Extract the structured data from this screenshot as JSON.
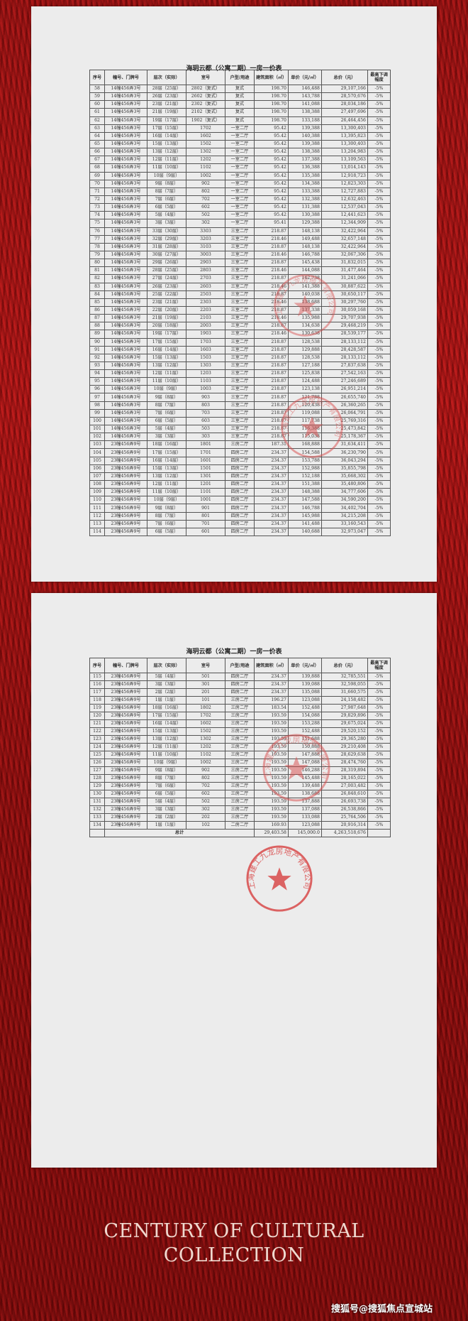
{
  "document_title": "海玥云都（公寓二期）一房一价表",
  "columns": [
    "序号",
    "幢号、门牌号",
    "层次（实际）",
    "室号",
    "户型/用途",
    "建筑面积（㎡）",
    "单价（元/㎡）",
    "总价（元）",
    "最高下调幅度"
  ],
  "page1_rows": [
    [
      "58",
      "14幢456弄3号",
      "28层（25层）",
      "2802（复式）",
      "复式",
      "198.70",
      "146,488",
      "29,107,166",
      "-5%"
    ],
    [
      "59",
      "14幢456弄3号",
      "26层（23层）",
      "2602（复式）",
      "复式",
      "198.70",
      "143,788",
      "28,570,676",
      "-5%"
    ],
    [
      "60",
      "14幢456弄3号",
      "23层（21层）",
      "2302（复式）",
      "复式",
      "198.70",
      "141,088",
      "28,034,186",
      "-5%"
    ],
    [
      "61",
      "14幢456弄3号",
      "21层（19层）",
      "2102（复式）",
      "复式",
      "198.70",
      "138,388",
      "27,497,696",
      "-5%"
    ],
    [
      "62",
      "14幢456弄3号",
      "19层（17层）",
      "1902（复式）",
      "复式",
      "198.70",
      "133,188",
      "26,464,456",
      "-5%"
    ],
    [
      "63",
      "14幢456弄3号",
      "17层（15层）",
      "1702",
      "一室二厅",
      "95.42",
      "139,388",
      "13,300,403",
      "-5%"
    ],
    [
      "64",
      "14幢456弄3号",
      "16层（14层）",
      "1602",
      "一室二厅",
      "95.42",
      "140,388",
      "13,395,823",
      "-5%"
    ],
    [
      "65",
      "14幢456弄3号",
      "15层（13层）",
      "1502",
      "一室二厅",
      "95.42",
      "139,388",
      "13,300,403",
      "-5%"
    ],
    [
      "66",
      "14幢456弄3号",
      "13层（12层）",
      "1302",
      "一室二厅",
      "95.42",
      "138,388",
      "13,204,983",
      "-5%"
    ],
    [
      "67",
      "14幢456弄3号",
      "12层（11层）",
      "1202",
      "一室二厅",
      "95.42",
      "137,388",
      "13,109,563",
      "-5%"
    ],
    [
      "68",
      "14幢456弄3号",
      "11层（10层）",
      "1102",
      "一室二厅",
      "95.42",
      "136,388",
      "13,014,143",
      "-5%"
    ],
    [
      "69",
      "14幢456弄3号",
      "10层（9层）",
      "1002",
      "一室二厅",
      "95.42",
      "135,388",
      "12,918,723",
      "-5%"
    ],
    [
      "70",
      "14幢456弄3号",
      "9层（8层）",
      "902",
      "一室二厅",
      "95.42",
      "134,388",
      "12,823,303",
      "-5%"
    ],
    [
      "71",
      "14幢456弄3号",
      "8层（7层）",
      "802",
      "一室二厅",
      "95.42",
      "133,388",
      "12,727,883",
      "-5%"
    ],
    [
      "72",
      "14幢456弄3号",
      "7层（6层）",
      "702",
      "一室二厅",
      "95.42",
      "132,388",
      "12,632,463",
      "-5%"
    ],
    [
      "73",
      "14幢456弄3号",
      "6层（5层）",
      "602",
      "一室二厅",
      "95.42",
      "131,388",
      "12,537,043",
      "-5%"
    ],
    [
      "74",
      "14幢456弄3号",
      "5层（4层）",
      "502",
      "一室二厅",
      "95.42",
      "130,388",
      "12,441,623",
      "-5%"
    ],
    [
      "75",
      "14幢456弄3号",
      "3层（3层）",
      "302",
      "一室二厅",
      "95.41",
      "129,388",
      "12,344,909",
      "-5%"
    ],
    [
      "76",
      "14幢456弄3号",
      "33层（30层）",
      "3303",
      "三室二厅",
      "218.87",
      "148,138",
      "32,422,964",
      "-5%"
    ],
    [
      "77",
      "14幢456弄3号",
      "32层（29层）",
      "3203",
      "三室二厅",
      "218.46",
      "149,488",
      "32,657,148",
      "-5%"
    ],
    [
      "78",
      "14幢456弄3号",
      "31层（28层）",
      "3103",
      "三室二厅",
      "218.87",
      "148,138",
      "32,422,964",
      "-5%"
    ],
    [
      "79",
      "14幢456弄3号",
      "30层（27层）",
      "3003",
      "三室二厅",
      "218.46",
      "146,788",
      "32,067,306",
      "-5%"
    ],
    [
      "80",
      "14幢456弄3号",
      "29层（26层）",
      "2903",
      "三室二厅",
      "218.87",
      "145,438",
      "31,832,015",
      "-5%"
    ],
    [
      "81",
      "14幢456弄3号",
      "28层（25层）",
      "2803",
      "三室二厅",
      "218.46",
      "144,088",
      "31,477,464",
      "-5%"
    ],
    [
      "82",
      "14幢456弄3号",
      "27层（24层）",
      "2703",
      "三室二厅",
      "218.87",
      "142,738",
      "31,241,066",
      "-5%"
    ],
    [
      "83",
      "14幢456弄3号",
      "26层（23层）",
      "2603",
      "三室二厅",
      "218.46",
      "141,388",
      "30,887,622",
      "-5%"
    ],
    [
      "84",
      "14幢456弄3号",
      "25层（22层）",
      "2503",
      "三室二厅",
      "218.87",
      "140,038",
      "30,650,117",
      "-5%"
    ],
    [
      "85",
      "14幢456弄3号",
      "23层（21层）",
      "2303",
      "三室二厅",
      "218.46",
      "138,688",
      "30,297,760",
      "-5%"
    ],
    [
      "86",
      "14幢456弄3号",
      "22层（20层）",
      "2203",
      "三室二厅",
      "218.87",
      "137,338",
      "30,059,168",
      "-5%"
    ],
    [
      "87",
      "14幢456弄3号",
      "21层（19层）",
      "2103",
      "三室二厅",
      "218.46",
      "135,988",
      "29,707,938",
      "-5%"
    ],
    [
      "88",
      "14幢456弄3号",
      "20层（18层）",
      "2003",
      "三室二厅",
      "218.87",
      "134,638",
      "29,468,219",
      "-5%"
    ],
    [
      "89",
      "14幢456弄3号",
      "19层（17层）",
      "1903",
      "三室二厅",
      "218.46",
      "130,638",
      "28,539,177",
      "-5%"
    ],
    [
      "90",
      "14幢456弄3号",
      "17层（15层）",
      "1703",
      "三室二厅",
      "218.87",
      "128,538",
      "28,133,112",
      "-5%"
    ],
    [
      "91",
      "14幢456弄3号",
      "16层（14层）",
      "1603",
      "三室二厅",
      "218.87",
      "129,888",
      "28,428,587",
      "-5%"
    ],
    [
      "92",
      "14幢456弄3号",
      "15层（13层）",
      "1503",
      "三室二厅",
      "218.87",
      "128,538",
      "28,133,112",
      "-5%"
    ],
    [
      "93",
      "14幢456弄3号",
      "13层（12层）",
      "1303",
      "三室二厅",
      "218.87",
      "127,188",
      "27,837,638",
      "-5%"
    ],
    [
      "94",
      "14幢456弄3号",
      "12层（11层）",
      "1203",
      "三室二厅",
      "218.87",
      "125,838",
      "27,542,163",
      "-5%"
    ],
    [
      "95",
      "14幢456弄3号",
      "11层（10层）",
      "1103",
      "三室二厅",
      "218.87",
      "124,488",
      "27,246,689",
      "-5%"
    ],
    [
      "96",
      "14幢456弄3号",
      "10层（9层）",
      "1003",
      "三室二厅",
      "218.87",
      "123,138",
      "26,951,214",
      "-5%"
    ],
    [
      "97",
      "14幢456弄3号",
      "9层（8层）",
      "903",
      "三室二厅",
      "218.87",
      "121,788",
      "26,655,740",
      "-5%"
    ],
    [
      "98",
      "14幢456弄3号",
      "8层（7层）",
      "803",
      "三室二厅",
      "218.87",
      "120,438",
      "26,360,265",
      "-5%"
    ],
    [
      "99",
      "14幢456弄3号",
      "7层（6层）",
      "703",
      "三室二厅",
      "218.87",
      "119,088",
      "26,064,791",
      "-5%"
    ],
    [
      "100",
      "14幢456弄3号",
      "6层（5层）",
      "603",
      "三室二厅",
      "218.87",
      "117,738",
      "25,769,316",
      "-5%"
    ],
    [
      "101",
      "14幢456弄3号",
      "5层（4层）",
      "503",
      "三室二厅",
      "218.87",
      "116,388",
      "25,473,842",
      "-5%"
    ],
    [
      "102",
      "14幢456弄3号",
      "3层（3层）",
      "303",
      "三室二厅",
      "218.87",
      "115,038",
      "25,178,367",
      "-5%"
    ],
    [
      "103",
      "23幢456弄9号",
      "18层（16层）",
      "1801",
      "三房二厅",
      "187.31",
      "168,888",
      "31,634,411",
      "-5%"
    ],
    [
      "104",
      "23幢456弄9号",
      "17层（15层）",
      "1701",
      "四房二厅",
      "234.37",
      "154,588",
      "36,230,790",
      "-5%"
    ],
    [
      "105",
      "23幢456弄9号",
      "16层（14层）",
      "1601",
      "四房二厅",
      "234.37",
      "153,788",
      "36,043,294",
      "-5%"
    ],
    [
      "106",
      "23幢456弄9号",
      "15层（13层）",
      "1501",
      "四房二厅",
      "234.37",
      "152,988",
      "35,855,798",
      "-5%"
    ],
    [
      "107",
      "23幢456弄9号",
      "13层（12层）",
      "1301",
      "四房二厅",
      "234.37",
      "152,188",
      "35,668,302",
      "-5%"
    ],
    [
      "108",
      "23幢456弄9号",
      "12层（11层）",
      "1201",
      "四房二厅",
      "234.37",
      "151,388",
      "35,480,806",
      "-5%"
    ],
    [
      "109",
      "23幢456弄9号",
      "11层（10层）",
      "1101",
      "四房二厅",
      "234.37",
      "148,388",
      "34,777,606",
      "-5%"
    ],
    [
      "110",
      "23幢456弄9号",
      "10层（9层）",
      "1001",
      "四房二厅",
      "234.37",
      "147,588",
      "34,590,200",
      "-5%"
    ],
    [
      "111",
      "23幢456弄9号",
      "9层（8层）",
      "901",
      "四房二厅",
      "234.37",
      "146,788",
      "34,402,704",
      "-5%"
    ],
    [
      "112",
      "23幢456弄9号",
      "8层（7层）",
      "801",
      "四房二厅",
      "234.37",
      "145,988",
      "34,215,208",
      "-5%"
    ],
    [
      "113",
      "23幢456弄9号",
      "7层（6层）",
      "701",
      "四房二厅",
      "234.37",
      "141,488",
      "33,160,543",
      "-5%"
    ],
    [
      "114",
      "23幢456弄9号",
      "6层（5层）",
      "601",
      "四房二厅",
      "234.37",
      "140,688",
      "32,973,047",
      "-5%"
    ]
  ],
  "page2_rows": [
    [
      "115",
      "23幢456弄9号",
      "5层（4层）",
      "501",
      "四房二厅",
      "234.37",
      "139,888",
      "32,785,551",
      "-5%"
    ],
    [
      "116",
      "23幢456弄9号",
      "3层（3层）",
      "301",
      "四房二厅",
      "234.37",
      "139,088",
      "32,598,055",
      "-5%"
    ],
    [
      "117",
      "23幢456弄9号",
      "2层（2层）",
      "201",
      "四房二厅",
      "234.37",
      "135,088",
      "31,660,575",
      "-5%"
    ],
    [
      "118",
      "23幢456弄9号",
      "1层（1层）",
      "101",
      "三房二厅",
      "196.27",
      "123,088",
      "24,158,482",
      "-5%"
    ],
    [
      "119",
      "23幢456弄9号",
      "18层（16层）",
      "1802",
      "三房二厅",
      "183.54",
      "152,488",
      "27,987,648",
      "-5%"
    ],
    [
      "120",
      "23幢456弄9号",
      "17层（15层）",
      "1702",
      "三房二厅",
      "193.59",
      "154,088",
      "29,829,896",
      "-5%"
    ],
    [
      "121",
      "23幢456弄9号",
      "16层（14层）",
      "1602",
      "三房二厅",
      "193.59",
      "153,288",
      "29,675,024",
      "-5%"
    ],
    [
      "122",
      "23幢456弄9号",
      "15层（13层）",
      "1502",
      "三房二厅",
      "193.59",
      "152,488",
      "29,520,152",
      "-5%"
    ],
    [
      "123",
      "23幢456弄9号",
      "13层（12层）",
      "1302",
      "三房二厅",
      "193.59",
      "151,688",
      "29,365,280",
      "-5%"
    ],
    [
      "124",
      "23幢456弄9号",
      "12层（11层）",
      "1202",
      "三房二厅",
      "193.59",
      "150,888",
      "29,210,408",
      "-5%"
    ],
    [
      "125",
      "23幢456弄9号",
      "11层（10层）",
      "1102",
      "三房二厅",
      "193.59",
      "147,888",
      "28,629,638",
      "-5%"
    ],
    [
      "126",
      "23幢456弄9号",
      "10层（9层）",
      "1002",
      "三房二厅",
      "193.59",
      "147,088",
      "28,474,760",
      "-5%"
    ],
    [
      "127",
      "23幢456弄9号",
      "9层（8层）",
      "902",
      "三房二厅",
      "193.59",
      "146,288",
      "28,319,894",
      "-5%"
    ],
    [
      "128",
      "23幢456弄9号",
      "8层（7层）",
      "802",
      "三房二厅",
      "193.59",
      "145,488",
      "28,165,022",
      "-5%"
    ],
    [
      "129",
      "23幢456弄9号",
      "7层（6层）",
      "702",
      "三房二厅",
      "193.59",
      "139,488",
      "27,003,482",
      "-5%"
    ],
    [
      "130",
      "23幢456弄9号",
      "6层（5层）",
      "602",
      "三房二厅",
      "193.59",
      "138,688",
      "26,848,610",
      "-5%"
    ],
    [
      "131",
      "23幢456弄9号",
      "5层（4层）",
      "502",
      "三房二厅",
      "193.59",
      "137,888",
      "26,693,738",
      "-5%"
    ],
    [
      "132",
      "23幢456弄9号",
      "3层（3层）",
      "302",
      "三房二厅",
      "193.59",
      "137,088",
      "26,538,866",
      "-5%"
    ],
    [
      "133",
      "23幢456弄9号",
      "2层（2层）",
      "202",
      "三房二厅",
      "193.59",
      "133,088",
      "25,764,506",
      "-5%"
    ],
    [
      "134",
      "23幢456弄9号",
      "1层（1层）",
      "102",
      "二房二厅",
      "169.93",
      "123,088",
      "20,916,314",
      "-5%"
    ]
  ],
  "total_row": {
    "label": "总计",
    "area": "29,403.58",
    "unit_price": "145,000.0",
    "total_price": "4,263,518,676"
  },
  "stamp_text": "上海建工九龙房地产有限公司",
  "slogan": {
    "line1": "CENTURY OF CULTURAL",
    "line2": "COLLECTION"
  },
  "watermark": "搜狐号@搜狐焦点宣城站",
  "colors": {
    "background": "#9c1414",
    "paper": "#ececec",
    "stamp": "#d94a4a",
    "slogan": "#f0d9cf"
  }
}
